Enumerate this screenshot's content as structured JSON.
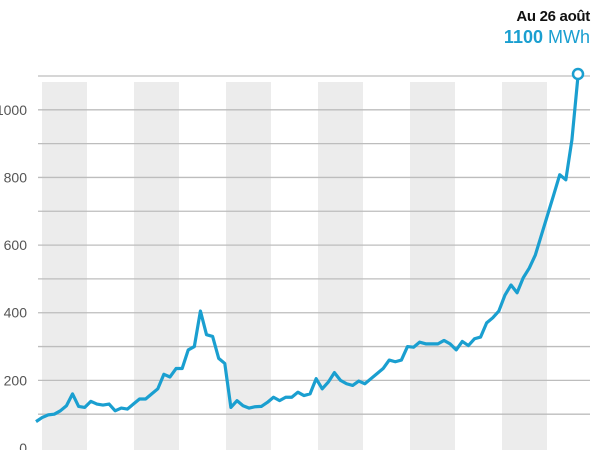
{
  "chart_data": {
    "type": "line",
    "title": "",
    "xlabel": "",
    "ylabel": "",
    "ylim": [
      0,
      1100
    ],
    "yticks": [
      0,
      200,
      400,
      600,
      800,
      1000
    ],
    "gridlines": [
      100,
      200,
      300,
      400,
      500,
      600,
      700,
      800,
      900,
      1000,
      1100
    ],
    "grid": true,
    "alternating_bands": 6,
    "series": [
      {
        "color": "#1a9fd0",
        "values": [
          78,
          90,
          98,
          100,
          110,
          125,
          160,
          123,
          120,
          138,
          130,
          127,
          130,
          110,
          118,
          115,
          130,
          145,
          145,
          160,
          175,
          218,
          210,
          235,
          235,
          290,
          300,
          405,
          335,
          330,
          265,
          250,
          120,
          140,
          125,
          118,
          122,
          123,
          135,
          150,
          140,
          150,
          150,
          165,
          155,
          160,
          205,
          175,
          195,
          223,
          200,
          190,
          185,
          198,
          190,
          205,
          220,
          235,
          260,
          255,
          260,
          300,
          298,
          313,
          308,
          308,
          308,
          318,
          308,
          290,
          315,
          303,
          323,
          328,
          370,
          385,
          405,
          452,
          482,
          459,
          503,
          532,
          571,
          630,
          689,
          748,
          808,
          793,
          911,
          1100
        ]
      }
    ],
    "annotation": {
      "date": "Au 26 août",
      "value": "1100",
      "unit": "MWh"
    },
    "colors": {
      "line": "#1a9fd0",
      "band": "#ececec",
      "grid": "#bdbdbd",
      "axis_text": "#555555"
    }
  }
}
